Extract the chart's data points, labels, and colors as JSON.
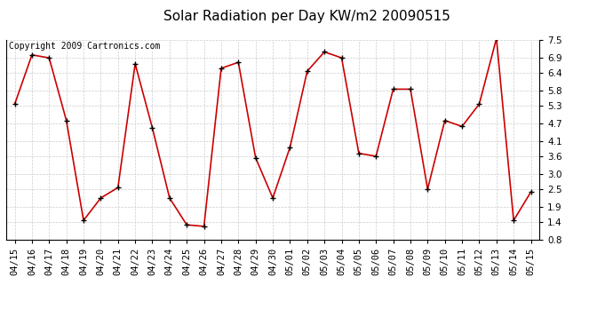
{
  "title": "Solar Radiation per Day KW/m2 20090515",
  "copyright": "Copyright 2009 Cartronics.com",
  "dates": [
    "04/15",
    "04/16",
    "04/17",
    "04/18",
    "04/19",
    "04/20",
    "04/21",
    "04/22",
    "04/23",
    "04/24",
    "04/25",
    "04/26",
    "04/27",
    "04/28",
    "04/29",
    "04/30",
    "05/01",
    "05/02",
    "05/03",
    "05/04",
    "05/05",
    "05/06",
    "05/07",
    "05/08",
    "05/09",
    "05/10",
    "05/11",
    "05/12",
    "05/13",
    "05/14",
    "05/15"
  ],
  "values": [
    5.35,
    7.0,
    6.9,
    4.8,
    1.45,
    2.2,
    2.55,
    6.7,
    4.55,
    2.2,
    1.3,
    1.25,
    6.55,
    6.75,
    3.55,
    2.2,
    3.9,
    6.45,
    7.1,
    6.9,
    3.7,
    3.6,
    5.85,
    5.85,
    2.5,
    4.8,
    4.6,
    5.35,
    7.55,
    1.45,
    2.4
  ],
  "ylim": [
    0.8,
    7.5
  ],
  "yticks": [
    0.8,
    1.4,
    1.9,
    2.5,
    3.0,
    3.6,
    4.1,
    4.7,
    5.3,
    5.8,
    6.4,
    6.9,
    7.5
  ],
  "line_color": "#cc0000",
  "marker": "+",
  "marker_size": 5,
  "marker_color": "#000000",
  "bg_color": "#ffffff",
  "grid_color": "#cccccc",
  "title_fontsize": 11,
  "copyright_fontsize": 7,
  "tick_fontsize": 7.5,
  "ytick_fontsize": 7.5
}
